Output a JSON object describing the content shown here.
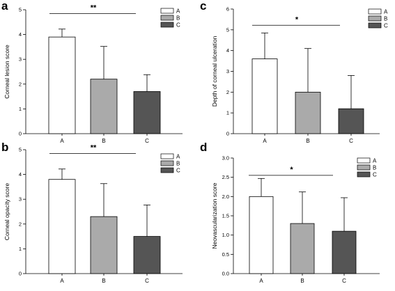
{
  "chart_data": [
    {
      "panel": "a",
      "type": "bar",
      "categories": [
        "A",
        "B",
        "C"
      ],
      "values": [
        3.9,
        2.2,
        1.7
      ],
      "errors": [
        0.32,
        1.32,
        0.68
      ],
      "ylabel": "Corneal lesion score",
      "ylim": [
        0,
        5
      ],
      "yticks": [
        0,
        1,
        2,
        3,
        4,
        5
      ],
      "significance": "**",
      "legend": [
        "A",
        "B",
        "C"
      ],
      "legend_position": "top-right",
      "colors": [
        "#ffffff",
        "#aaaaaa",
        "#555555"
      ]
    },
    {
      "panel": "b",
      "type": "bar",
      "categories": [
        "A",
        "B",
        "C"
      ],
      "values": [
        3.8,
        2.3,
        1.5
      ],
      "errors": [
        0.42,
        1.33,
        1.27
      ],
      "ylabel": "Corneal opacity score",
      "ylim": [
        0,
        5
      ],
      "yticks": [
        0,
        1,
        2,
        3,
        4,
        5
      ],
      "significance": "**",
      "legend": [
        "A",
        "B",
        "C"
      ],
      "legend_position": "top-right",
      "colors": [
        "#ffffff",
        "#aaaaaa",
        "#555555"
      ]
    },
    {
      "panel": "c",
      "type": "bar",
      "categories": [
        "A",
        "B",
        "C"
      ],
      "values": [
        3.6,
        2.0,
        1.2
      ],
      "errors": [
        1.25,
        2.1,
        1.6
      ],
      "ylabel": "Depth of corneal ulceration",
      "ylim": [
        0,
        6
      ],
      "yticks": [
        0,
        1,
        2,
        3,
        4,
        5,
        6
      ],
      "significance": "*",
      "legend": [
        "A",
        "B",
        "C"
      ],
      "legend_position": "top-right",
      "colors": [
        "#ffffff",
        "#aaaaaa",
        "#555555"
      ]
    },
    {
      "panel": "d",
      "type": "bar",
      "categories": [
        "A",
        "B",
        "C"
      ],
      "values": [
        2.0,
        1.3,
        1.1
      ],
      "errors": [
        0.47,
        0.82,
        0.87
      ],
      "ylabel": "Neovascularization score",
      "ylim": [
        0,
        3
      ],
      "yticks": [
        "0.0",
        "0.5",
        "1.0",
        "1.5",
        "2.0",
        "2.5",
        "3.0"
      ],
      "significance": "*",
      "legend": [
        "A",
        "B",
        "C"
      ],
      "legend_position": "top-right",
      "colors": [
        "#ffffff",
        "#aaaaaa",
        "#555555"
      ]
    }
  ]
}
